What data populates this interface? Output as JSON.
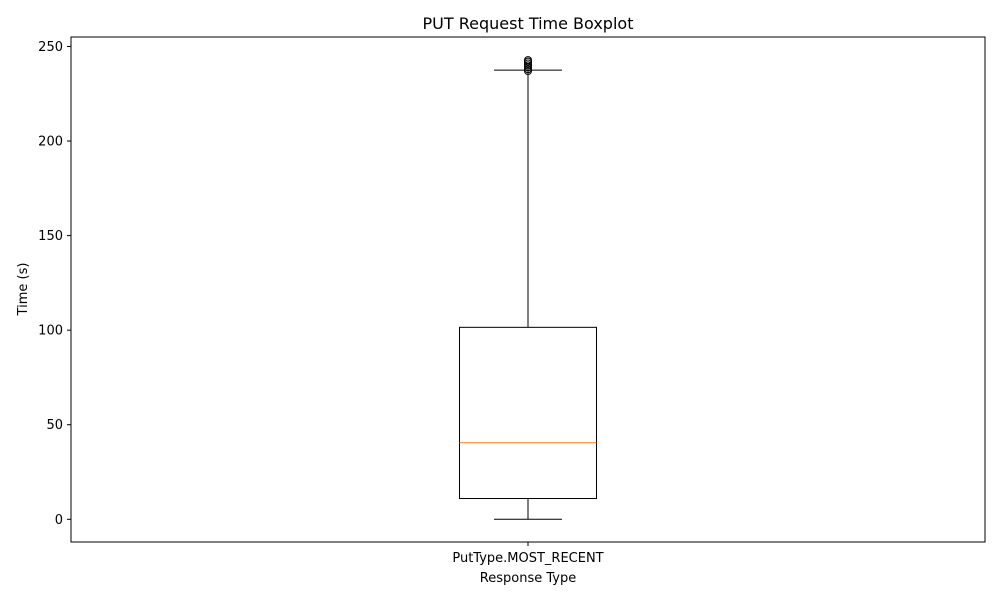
{
  "chart_data": {
    "type": "boxplot",
    "title": "PUT Request Time Boxplot",
    "xlabel": "Response Type",
    "ylabel": "Time (s)",
    "categories": [
      "PutType.MOST_RECENT"
    ],
    "boxes": [
      {
        "category": "PutType.MOST_RECENT",
        "whisker_low": 0,
        "q1": 11,
        "median": 40.5,
        "q3": 101.5,
        "whisker_high": 237.5,
        "outliers": [
          237,
          238,
          239,
          240,
          241,
          242,
          242.8
        ]
      }
    ],
    "ylim": [
      -12,
      255
    ],
    "yticks": [
      0,
      50,
      100,
      150,
      200,
      250
    ],
    "grid": false,
    "colors": {
      "box": "#000000",
      "median": "#ff7f0e",
      "outlier_edge": "#000000"
    }
  }
}
